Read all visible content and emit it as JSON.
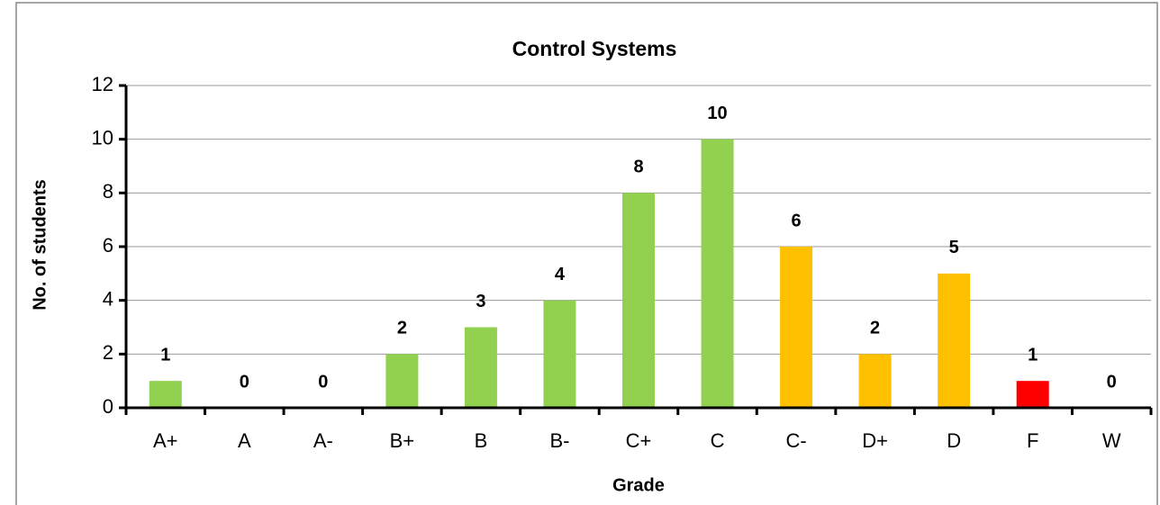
{
  "chart_data": {
    "type": "bar",
    "title": "Control Systems",
    "x_label": "Grade",
    "y_label": "No. of students",
    "categories": [
      "A+",
      "A",
      "A-",
      "B+",
      "B",
      "B-",
      "C+",
      "C",
      "C-",
      "D+",
      "D",
      "F",
      "W"
    ],
    "values": [
      1,
      0,
      0,
      2,
      3,
      4,
      8,
      10,
      6,
      2,
      5,
      1,
      0
    ],
    "colors": [
      "#92d050",
      "#92d050",
      "#92d050",
      "#92d050",
      "#92d050",
      "#92d050",
      "#92d050",
      "#92d050",
      "#ffc000",
      "#ffc000",
      "#ffc000",
      "#ff0000",
      "#ff0000"
    ],
    "ylim": [
      0,
      12
    ],
    "yticks": [
      0,
      2,
      4,
      6,
      8,
      10,
      12
    ],
    "grid": true
  }
}
